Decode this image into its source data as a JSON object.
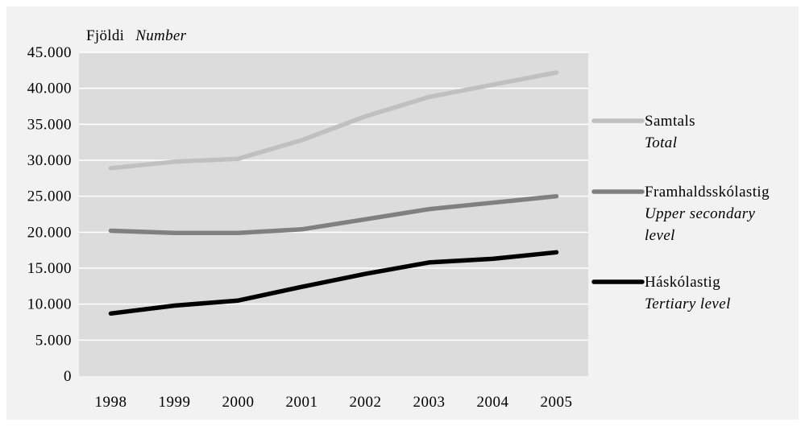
{
  "chart_data": {
    "type": "line",
    "ylabel": "Fjöldi",
    "ylabel_en": "Number",
    "categories": [
      "1998",
      "1999",
      "2000",
      "2001",
      "2002",
      "2003",
      "2004",
      "2005"
    ],
    "ylim": [
      0,
      45000
    ],
    "y_ticks": [
      {
        "value": 0,
        "label": "0"
      },
      {
        "value": 5000,
        "label": "5.000"
      },
      {
        "value": 10000,
        "label": "10.000"
      },
      {
        "value": 15000,
        "label": "15.000"
      },
      {
        "value": 20000,
        "label": "20.000"
      },
      {
        "value": 25000,
        "label": "25.000"
      },
      {
        "value": 30000,
        "label": "30.000"
      },
      {
        "value": 35000,
        "label": "35.000"
      },
      {
        "value": 40000,
        "label": "40.000"
      },
      {
        "value": 45000,
        "label": "45.000"
      }
    ],
    "grid": true,
    "legend_position": "right",
    "series": [
      {
        "name": "Samtals",
        "name_en": [
          "Total"
        ],
        "color": "#c0c0c0",
        "values": [
          28900,
          29800,
          30200,
          32800,
          36100,
          38800,
          40500,
          42200
        ]
      },
      {
        "name": "Framhaldsskólastig",
        "name_en": [
          "Upper secondary",
          "level"
        ],
        "color": "#808080",
        "values": [
          20200,
          19900,
          19900,
          20400,
          21800,
          23200,
          24100,
          25000
        ]
      },
      {
        "name": "Háskólastig",
        "name_en": [
          "Tertiary level"
        ],
        "color": "#000000",
        "values": [
          8700,
          9800,
          10500,
          12400,
          14200,
          15800,
          16300,
          17200
        ]
      }
    ],
    "colors": {
      "plot_background": "#dcdcdc",
      "page_background": "#f2f2f2",
      "gridline": "#ffffff"
    }
  }
}
